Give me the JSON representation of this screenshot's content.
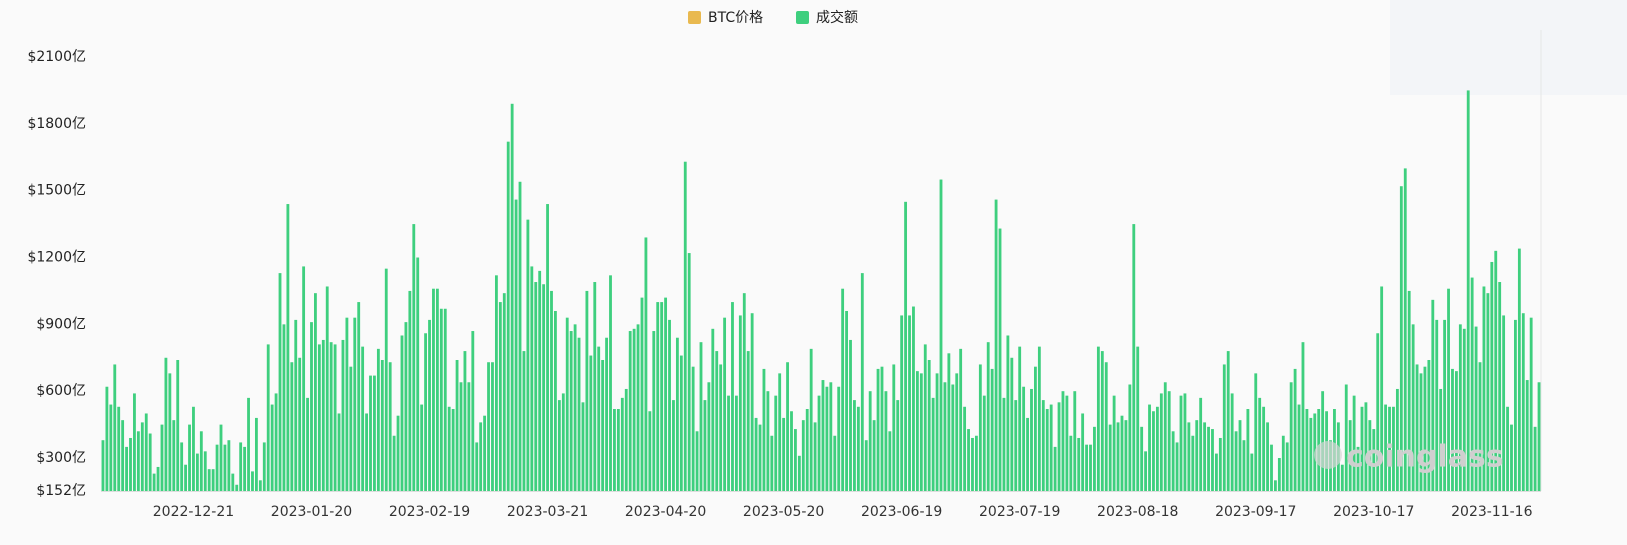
{
  "chart_data": {
    "type": "bar",
    "watermark": "coinglass",
    "grid": false,
    "ylim": [
      152,
      2100
    ],
    "yticks": [
      {
        "value": 152,
        "label": "$152亿"
      },
      {
        "value": 300,
        "label": "$300亿"
      },
      {
        "value": 600,
        "label": "$600亿"
      },
      {
        "value": 900,
        "label": "$900亿"
      },
      {
        "value": 1200,
        "label": "$1200亿"
      },
      {
        "value": 1500,
        "label": "$1500亿"
      },
      {
        "value": 1800,
        "label": "$1800亿"
      },
      {
        "value": 2100,
        "label": "$2100亿"
      }
    ],
    "categories": [
      null,
      null,
      null,
      null,
      null,
      null,
      null,
      null,
      null,
      null,
      null,
      null,
      null,
      null,
      null,
      null,
      null,
      null,
      null,
      null,
      null,
      null,
      null,
      "2022-12-21",
      null,
      null,
      null,
      null,
      null,
      null,
      null,
      null,
      null,
      null,
      null,
      null,
      null,
      null,
      null,
      null,
      null,
      null,
      null,
      null,
      null,
      null,
      null,
      null,
      null,
      null,
      null,
      null,
      null,
      "2023-01-20",
      null,
      null,
      null,
      null,
      null,
      null,
      null,
      null,
      null,
      null,
      null,
      null,
      null,
      null,
      null,
      null,
      null,
      null,
      null,
      null,
      null,
      null,
      null,
      null,
      null,
      null,
      null,
      null,
      null,
      "2023-02-19",
      null,
      null,
      null,
      null,
      null,
      null,
      null,
      null,
      null,
      null,
      null,
      null,
      null,
      null,
      null,
      null,
      null,
      null,
      null,
      null,
      null,
      null,
      null,
      null,
      null,
      null,
      null,
      null,
      null,
      "2023-03-21",
      null,
      null,
      null,
      null,
      null,
      null,
      null,
      null,
      null,
      null,
      null,
      null,
      null,
      null,
      null,
      null,
      null,
      null,
      null,
      null,
      null,
      null,
      null,
      null,
      null,
      null,
      null,
      null,
      null,
      "2023-04-20",
      null,
      null,
      null,
      null,
      null,
      null,
      null,
      null,
      null,
      null,
      null,
      null,
      null,
      null,
      null,
      null,
      null,
      null,
      null,
      null,
      null,
      null,
      null,
      null,
      null,
      null,
      null,
      null,
      null,
      "2023-05-20",
      null,
      null,
      null,
      null,
      null,
      null,
      null,
      null,
      null,
      null,
      null,
      null,
      null,
      null,
      null,
      null,
      null,
      null,
      null,
      null,
      null,
      null,
      null,
      null,
      null,
      null,
      null,
      null,
      null,
      "2023-06-19",
      null,
      null,
      null,
      null,
      null,
      null,
      null,
      null,
      null,
      null,
      null,
      null,
      null,
      null,
      null,
      null,
      null,
      null,
      null,
      null,
      null,
      null,
      null,
      null,
      null,
      null,
      null,
      null,
      null,
      "2023-07-19",
      null,
      null,
      null,
      null,
      null,
      null,
      null,
      null,
      null,
      null,
      null,
      null,
      null,
      null,
      null,
      null,
      null,
      null,
      null,
      null,
      null,
      null,
      null,
      null,
      null,
      null,
      null,
      null,
      null,
      "2023-08-18",
      null,
      null,
      null,
      null,
      null,
      null,
      null,
      null,
      null,
      null,
      null,
      null,
      null,
      null,
      null,
      null,
      null,
      null,
      null,
      null,
      null,
      null,
      null,
      null,
      null,
      null,
      null,
      null,
      null,
      "2023-09-17",
      null,
      null,
      null,
      null,
      null,
      null,
      null,
      null,
      null,
      null,
      null,
      null,
      null,
      null,
      null,
      null,
      null,
      null,
      null,
      null,
      null,
      null,
      null,
      null,
      null,
      null,
      null,
      null,
      null,
      "2023-10-17",
      null,
      null,
      null,
      null,
      null,
      null,
      null,
      null,
      null,
      null,
      null,
      null,
      null,
      null,
      null,
      null,
      null,
      null,
      null,
      null,
      null,
      null,
      null,
      null,
      null,
      null,
      null,
      null,
      null,
      "2023-11-16",
      null,
      null,
      null,
      null,
      null,
      null,
      null,
      null,
      null,
      null,
      null,
      null
    ],
    "series": [
      {
        "name": "BTC价格",
        "color": "#e9b94f",
        "hidden": true,
        "values": [
          null,
          null,
          null,
          null,
          null,
          null,
          null,
          null,
          null,
          null,
          null,
          null,
          null,
          null,
          null,
          null,
          null,
          null,
          null,
          null,
          null,
          null,
          null,
          null,
          null,
          null,
          null,
          null,
          null,
          null,
          null,
          null,
          null,
          null,
          null,
          null,
          null,
          null,
          null,
          null,
          null,
          null,
          null,
          null,
          null,
          null,
          null,
          null,
          null,
          null,
          null,
          null,
          null,
          null,
          null,
          null,
          null,
          null,
          null,
          null,
          null,
          null,
          null,
          null,
          null,
          null,
          null,
          null,
          null,
          null,
          null,
          null,
          null,
          null,
          null,
          null,
          null,
          null,
          null,
          null,
          null,
          null,
          null,
          null,
          null,
          null,
          null,
          null,
          null,
          null,
          null,
          null,
          null,
          null,
          null,
          null,
          null,
          null,
          null,
          null,
          null,
          null,
          null,
          null,
          null,
          null,
          null,
          null,
          null,
          null,
          null,
          null,
          null,
          null,
          null,
          null,
          null,
          null,
          null,
          null,
          null,
          null,
          null,
          null,
          null,
          null,
          null,
          null,
          null,
          null,
          null,
          null,
          null,
          null,
          null,
          null,
          null,
          null,
          null,
          null,
          null,
          null,
          null,
          null,
          null,
          null,
          null,
          null,
          null,
          null,
          null,
          null,
          null,
          null,
          null,
          null,
          null,
          null,
          null,
          null,
          null,
          null,
          null,
          null,
          null,
          null,
          null,
          null,
          null,
          null,
          null,
          null,
          null,
          null,
          null,
          null,
          null,
          null,
          null,
          null,
          null,
          null,
          null,
          null,
          null,
          null,
          null,
          null,
          null,
          null,
          null,
          null,
          null,
          null,
          null,
          null,
          null,
          null,
          null,
          null,
          null,
          null,
          null,
          null,
          null,
          null,
          null,
          null,
          null,
          null,
          null,
          null,
          null,
          null,
          null,
          null,
          null,
          null,
          null,
          null,
          null,
          null,
          null,
          null,
          null,
          null,
          null,
          null,
          null,
          null,
          null,
          null,
          null,
          null,
          null,
          null,
          null,
          null,
          null,
          null,
          null,
          null,
          null,
          null,
          null,
          null,
          null,
          null,
          null,
          null,
          null,
          null,
          null,
          null,
          null,
          null,
          null,
          null,
          null,
          null,
          null,
          null,
          null,
          null,
          null,
          null,
          null,
          null,
          null,
          null,
          null,
          null,
          null,
          null,
          null,
          null,
          null,
          null,
          null,
          null,
          null,
          null,
          null,
          null,
          null,
          null,
          null,
          null,
          null,
          null,
          null,
          null,
          null,
          null,
          null,
          null,
          null,
          null,
          null,
          null,
          null,
          null,
          null,
          null,
          null,
          null,
          null,
          null,
          null,
          null,
          null,
          null,
          null,
          null,
          null,
          null,
          null,
          null,
          null,
          null,
          null,
          null,
          null,
          null,
          null,
          null,
          null,
          null,
          null,
          null,
          null,
          null,
          null,
          null,
          null,
          null,
          null,
          null,
          null,
          null,
          null,
          null,
          null,
          null,
          null,
          null,
          null,
          null,
          null,
          null,
          null,
          null,
          null,
          null,
          null,
          null,
          null,
          null,
          null,
          null,
          null,
          null,
          null,
          null,
          null,
          null
        ]
      },
      {
        "name": "成交额",
        "color": "#3ecf7e",
        "values": [
          380,
          620,
          540,
          720,
          530,
          470,
          350,
          390,
          590,
          420,
          460,
          500,
          410,
          230,
          260,
          450,
          750,
          680,
          470,
          740,
          370,
          270,
          450,
          530,
          320,
          420,
          330,
          250,
          250,
          360,
          450,
          360,
          380,
          230,
          180,
          370,
          350,
          570,
          240,
          480,
          200,
          370,
          810,
          540,
          590,
          1130,
          900,
          1440,
          730,
          920,
          750,
          1160,
          570,
          910,
          1040,
          810,
          830,
          1070,
          820,
          810,
          500,
          830,
          930,
          710,
          930,
          1000,
          800,
          500,
          670,
          670,
          790,
          740,
          1150,
          730,
          400,
          490,
          850,
          910,
          1050,
          1350,
          1200,
          540,
          860,
          920,
          1060,
          1060,
          970,
          970,
          530,
          520,
          740,
          640,
          780,
          640,
          870,
          370,
          460,
          490,
          730,
          730,
          1120,
          1000,
          1040,
          1720,
          1890,
          1460,
          1540,
          780,
          1370,
          1160,
          1090,
          1140,
          1080,
          1440,
          1050,
          960,
          560,
          590,
          930,
          870,
          900,
          840,
          550,
          1050,
          760,
          1090,
          800,
          740,
          840,
          1120,
          520,
          520,
          570,
          610,
          870,
          880,
          900,
          1020,
          1290,
          510,
          870,
          1000,
          1000,
          1020,
          920,
          560,
          840,
          760,
          1630,
          1220,
          710,
          420,
          820,
          560,
          640,
          880,
          780,
          720,
          930,
          580,
          1000,
          580,
          940,
          1040,
          780,
          950,
          480,
          450,
          700,
          600,
          400,
          580,
          680,
          480,
          730,
          510,
          430,
          310,
          470,
          520,
          790,
          460,
          580,
          650,
          620,
          640,
          400,
          620,
          1060,
          960,
          830,
          560,
          530,
          1130,
          380,
          600,
          470,
          700,
          710,
          600,
          420,
          720,
          560,
          940,
          1450,
          940,
          980,
          690,
          680,
          810,
          740,
          570,
          680,
          1550,
          640,
          770,
          630,
          680,
          790,
          530,
          430,
          390,
          400,
          720,
          580,
          820,
          700,
          1460,
          1330,
          570,
          850,
          750,
          560,
          800,
          620,
          480,
          610,
          710,
          800,
          560,
          520,
          540,
          350,
          550,
          600,
          580,
          400,
          600,
          390,
          500,
          360,
          360,
          440,
          800,
          780,
          730,
          450,
          580,
          460,
          490,
          470,
          630,
          1350,
          800,
          440,
          330,
          540,
          510,
          530,
          590,
          640,
          600,
          420,
          370,
          580,
          590,
          460,
          400,
          470,
          570,
          460,
          440,
          430,
          320,
          390,
          720,
          780,
          590,
          420,
          470,
          380,
          520,
          320,
          680,
          570,
          530,
          460,
          360,
          200,
          300,
          400,
          370,
          640,
          700,
          540,
          820,
          520,
          480,
          500,
          520,
          600,
          510,
          380,
          520,
          460,
          270,
          630,
          470,
          580,
          350,
          530,
          550,
          470,
          430,
          860,
          1070,
          540,
          530,
          530,
          610,
          1520,
          1600,
          1050,
          900,
          720,
          680,
          710,
          740,
          1010,
          920,
          610,
          920,
          1060,
          700,
          690,
          900,
          880,
          1950,
          1110,
          890,
          730,
          1070,
          1040,
          1180,
          1230,
          1090,
          940,
          530,
          450,
          920,
          1240,
          950,
          650,
          930,
          440,
          640
        ]
      }
    ]
  }
}
